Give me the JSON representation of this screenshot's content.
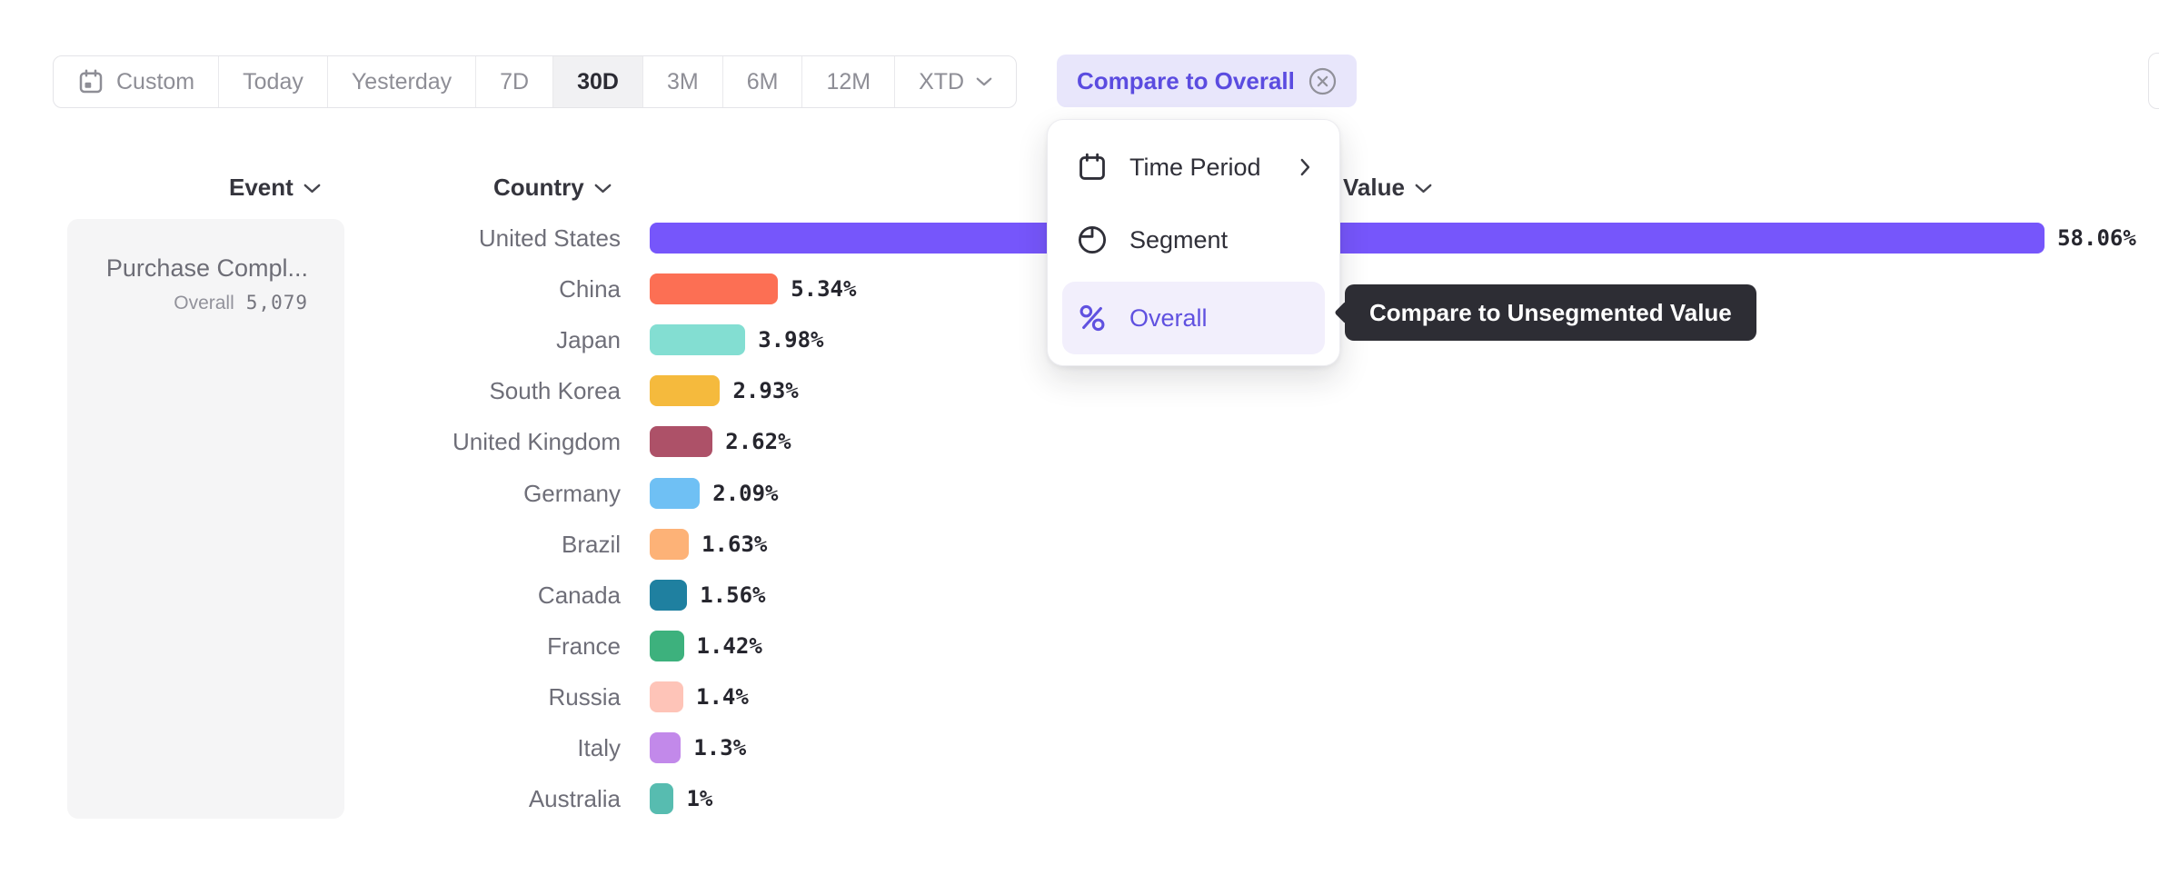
{
  "toolbar": {
    "time_ranges": [
      {
        "label": "Custom",
        "icon": "calendar",
        "selected": false
      },
      {
        "label": "Today",
        "selected": false
      },
      {
        "label": "Yesterday",
        "selected": false
      },
      {
        "label": "7D",
        "selected": false
      },
      {
        "label": "30D",
        "selected": true
      },
      {
        "label": "3M",
        "selected": false
      },
      {
        "label": "6M",
        "selected": false
      },
      {
        "label": "12M",
        "selected": false
      },
      {
        "label": "XTD",
        "has_dropdown": true,
        "selected": false
      }
    ],
    "compare_chip": {
      "label": "Compare to Overall"
    }
  },
  "dropdown_menu": {
    "items": [
      {
        "label": "Time Period",
        "icon": "calendar",
        "has_submenu": true,
        "selected": false
      },
      {
        "label": "Segment",
        "icon": "segment",
        "has_submenu": false,
        "selected": false
      },
      {
        "label": "Overall",
        "icon": "percent",
        "has_submenu": false,
        "selected": true
      }
    ]
  },
  "tooltip": {
    "text": "Compare to Unsegmented Value"
  },
  "columns": {
    "event": {
      "label": "Event"
    },
    "country": {
      "label": "Country"
    },
    "value": {
      "label": "Value"
    }
  },
  "event_panel": {
    "event_name": "Purchase Compl...",
    "overall_label": "Overall",
    "overall_value": "5,079"
  },
  "chart_data": {
    "type": "bar",
    "orientation": "horizontal",
    "categories": [
      "United States",
      "China",
      "Japan",
      "South Korea",
      "United Kingdom",
      "Germany",
      "Brazil",
      "Canada",
      "France",
      "Russia",
      "Italy",
      "Australia"
    ],
    "values": [
      58.06,
      5.34,
      3.98,
      2.93,
      2.62,
      2.09,
      1.63,
      1.56,
      1.42,
      1.4,
      1.3,
      1
    ],
    "value_labels": [
      "58.06%",
      "5.34%",
      "3.98%",
      "2.93%",
      "2.62%",
      "2.09%",
      "1.63%",
      "1.56%",
      "1.42%",
      "1.4%",
      "1.3%",
      "1%"
    ],
    "bar_colors": [
      "#7656fb",
      "#fc6f54",
      "#83ded2",
      "#f5ba3d",
      "#ad5168",
      "#6fc0f4",
      "#fdb277",
      "#1f80a0",
      "#3db17d",
      "#fec4b8",
      "#c289ea",
      "#57bcb0"
    ],
    "xlim": [
      0,
      60
    ],
    "grid": false,
    "legend": "none"
  },
  "colors": {
    "accent": "#5b4ce0",
    "chip_bg": "#e8e6fb",
    "selected_range_bg": "#f1f1f3",
    "panel_bg": "#f5f5f6",
    "menu_highlight_bg": "#f2effc",
    "tooltip_bg": "#2d2d34"
  }
}
